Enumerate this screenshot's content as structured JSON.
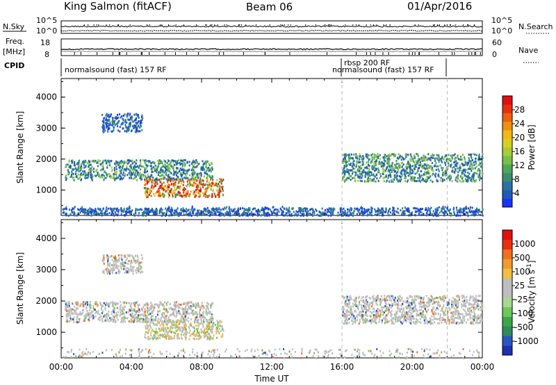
{
  "header": {
    "station": "King Salmon (fitACF)",
    "beam": "Beam 06",
    "date": "01/Apr/2016"
  },
  "meta_panel": {
    "nsky_label": "N.Sky",
    "nsky_tick_top": "10^5",
    "nsky_tick_bottom": "10^0",
    "nsearch_label": "N.Search",
    "nsearch_tick_top": "10^5",
    "nsearch_tick_bottom": "10^0",
    "freq_label": "Freq.",
    "freq_unit": "[MHz]",
    "freq_tick_top": "18",
    "freq_tick_bottom": "8",
    "nave_label": "Nave",
    "nave_tick_top": "60",
    "nave_tick_bottom": "0",
    "cpid_label": "CPID",
    "cpid_segments": [
      {
        "label": "normalsound (fast) 157 RF"
      },
      {
        "label": "rbsp 200 RF"
      },
      {
        "label": "normalsound (fast) 157 RF"
      }
    ]
  },
  "chart_data": [
    {
      "type": "heatmap",
      "panel": "power",
      "ylabel": "Slant Range [km]",
      "ylim": [
        180,
        4600
      ],
      "y_ticks": [
        1000,
        2000,
        3000,
        4000
      ],
      "x_ticks": [
        "00:00",
        "04:00",
        "08:00",
        "12:00",
        "16:00",
        "20:00",
        "00:00"
      ],
      "colorbar": {
        "label": "Power [dB]",
        "ticks": [
          "28",
          "24",
          "20",
          "16",
          "12",
          "8",
          "4"
        ],
        "colors": [
          "#1a32ff",
          "#1e5cb4",
          "#2a72a8",
          "#3c8c6e",
          "#4ea85a",
          "#76c04a",
          "#a8cc3a",
          "#d8d020",
          "#f2b818",
          "#f09010",
          "#ec6010",
          "#e83010",
          "#e01010"
        ]
      },
      "regions": [
        {
          "name": "main-echo-band",
          "t_start": 0.2,
          "t_end": 8.6,
          "range_low": 1350,
          "range_high": 2000,
          "level": "medium"
        },
        {
          "name": "high-power-patch",
          "t_start": 4.7,
          "t_end": 9.2,
          "range_low": 800,
          "range_high": 1400,
          "level": "high"
        },
        {
          "name": "upper-scatter",
          "t_start": 2.3,
          "t_end": 4.6,
          "range_low": 2900,
          "range_high": 3500,
          "level": "low"
        },
        {
          "name": "ground-scatter-low",
          "t_start": 0.0,
          "t_end": 24.0,
          "range_low": 200,
          "range_high": 450,
          "level": "low"
        },
        {
          "name": "evening-band",
          "t_start": 16.0,
          "t_end": 24.0,
          "range_low": 1300,
          "range_high": 2200,
          "level": "medium"
        }
      ]
    },
    {
      "type": "heatmap",
      "panel": "velocity",
      "ylabel": "Slant Range [km]",
      "ylim": [
        180,
        4600
      ],
      "y_ticks": [
        1000,
        2000,
        3000,
        4000
      ],
      "x_ticks": [
        "00:00",
        "04:00",
        "08:00",
        "12:00",
        "16:00",
        "20:00",
        "00:00"
      ],
      "xlabel": "Time UT",
      "colorbar": {
        "label": "Velocity [m s^-1]",
        "ticks": [
          "1000",
          "500",
          "100",
          "25",
          "-25",
          "-100",
          "-500",
          "-1000"
        ],
        "colors": [
          "#1e2fb0",
          "#2a56c0",
          "#2f8a5c",
          "#3aa84a",
          "#6cc85a",
          "#a8d890",
          "#bebebe",
          "#bebebe",
          "#f0c040",
          "#f09a30",
          "#f07020",
          "#e83010",
          "#e01010"
        ]
      },
      "regions": [
        {
          "name": "main-echo-band",
          "t_start": 0.2,
          "t_end": 8.6,
          "range_low": 1350,
          "range_high": 2000,
          "level": "ground"
        },
        {
          "name": "low-velocity-patch",
          "t_start": 4.7,
          "t_end": 9.2,
          "range_low": 800,
          "range_high": 1400,
          "level": "mixed"
        },
        {
          "name": "upper-scatter",
          "t_start": 2.3,
          "t_end": 4.6,
          "range_low": 2900,
          "range_high": 3500,
          "level": "ground"
        },
        {
          "name": "evening-band",
          "t_start": 16.0,
          "t_end": 24.0,
          "range_low": 1300,
          "range_high": 2200,
          "level": "ground"
        }
      ]
    }
  ]
}
